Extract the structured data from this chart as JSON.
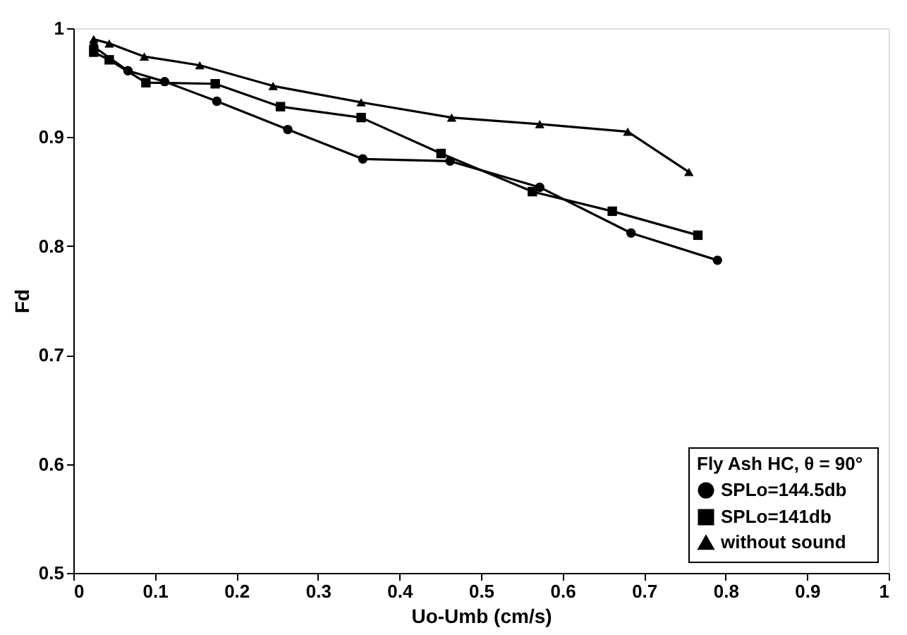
{
  "chart_data": {
    "type": "line",
    "xlabel": "Uo-Umb (cm/s)",
    "ylabel": "Fd",
    "legend_title": "Fly Ash HC,  θ = 90°",
    "xlim": [
      0,
      1
    ],
    "xticks": [
      0,
      0.1,
      0.2,
      0.3,
      0.4,
      0.5,
      0.6,
      0.7,
      0.8,
      0.9,
      1
    ],
    "ylim": [
      0.5,
      1
    ],
    "yticks": [
      0.5,
      0.6,
      0.7,
      0.8,
      0.9,
      1
    ],
    "grid": false,
    "legend": "bottom right",
    "line_style": "solid",
    "series": [
      {
        "name": "SPLo=144.5db",
        "color": "#000000",
        "marker": "circle",
        "x": [
          0.025,
          0.067,
          0.112,
          0.176,
          0.263,
          0.355,
          0.462,
          0.572,
          0.684,
          0.79
        ],
        "values": [
          0.983,
          0.961,
          0.951,
          0.933,
          0.907,
          0.88,
          0.878,
          0.854,
          0.812,
          0.787
        ]
      },
      {
        "name": "SPLo=141db",
        "color": "#000000",
        "marker": "square",
        "x": [
          0.025,
          0.044,
          0.089,
          0.174,
          0.254,
          0.353,
          0.451,
          0.563,
          0.661,
          0.766
        ],
        "values": [
          0.978,
          0.971,
          0.95,
          0.949,
          0.928,
          0.918,
          0.885,
          0.85,
          0.832,
          0.81
        ]
      },
      {
        "name": "without sound",
        "color": "#000000",
        "marker": "triangle",
        "x": [
          0.025,
          0.044,
          0.087,
          0.155,
          0.245,
          0.353,
          0.464,
          0.572,
          0.68,
          0.755
        ],
        "values": [
          0.99,
          0.986,
          0.974,
          0.966,
          0.947,
          0.932,
          0.918,
          0.912,
          0.905,
          0.868
        ]
      }
    ]
  }
}
